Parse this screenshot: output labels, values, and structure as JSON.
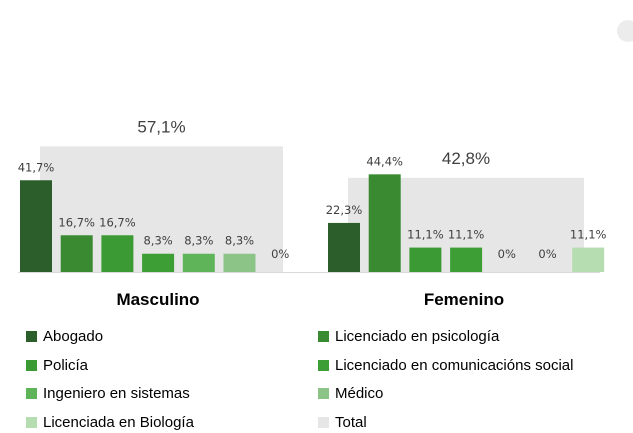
{
  "chart_data": {
    "type": "bar",
    "groups": [
      "Masculino",
      "Femenino"
    ],
    "totals": [
      57.1,
      42.8
    ],
    "total_labels": [
      "57,1%",
      "42,8%"
    ],
    "series": [
      {
        "name": "Abogado",
        "color": "#2b5e2b",
        "values": [
          41.7,
          22.3
        ],
        "labels": [
          "41,7%",
          "22,3%"
        ]
      },
      {
        "name": "Licenciado en psicología",
        "color": "#3a8a32",
        "values": [
          16.7,
          44.4
        ],
        "labels": [
          "16,7%",
          "44,4%"
        ]
      },
      {
        "name": "Policía",
        "color": "#3c9a34",
        "values": [
          16.7,
          11.1
        ],
        "labels": [
          "16,7%",
          "11,1%"
        ]
      },
      {
        "name": "Licenciado en comunicacións social",
        "color": "#3e9e36",
        "values": [
          8.3,
          11.1
        ],
        "labels": [
          "8,3%",
          "11,1%"
        ]
      },
      {
        "name": "Ingeniero en sistemas",
        "color": "#5fb45a",
        "values": [
          8.3,
          0
        ],
        "labels": [
          "8,3%",
          "0%"
        ]
      },
      {
        "name": "Médico",
        "color": "#8cc488",
        "values": [
          8.3,
          0
        ],
        "labels": [
          "8,3%",
          "0%"
        ]
      },
      {
        "name": "Licenciada en Biología",
        "color": "#b6ddb2",
        "values": [
          0,
          11.1
        ],
        "labels": [
          "0%",
          "11,1%"
        ]
      }
    ],
    "total_series": {
      "name": "Total",
      "color": "#e6e6e6"
    },
    "legend_position": "bottom",
    "grid": false
  }
}
